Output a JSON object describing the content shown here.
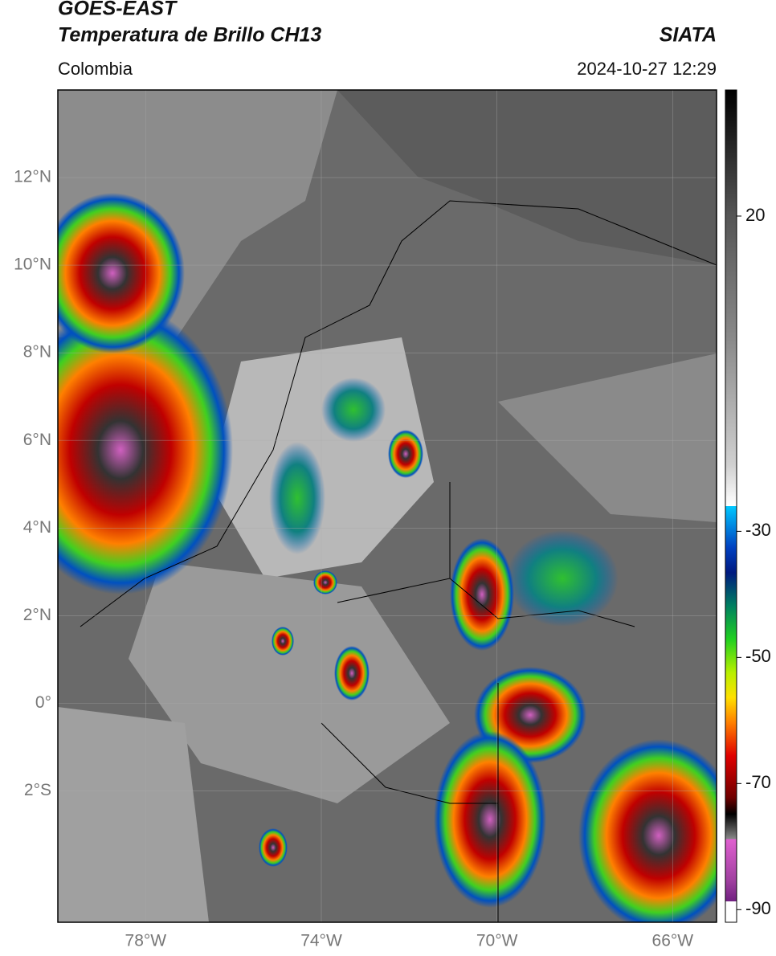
{
  "header": {
    "title_line1": "GOES-EAST",
    "title_line2": "Temperatura de Brillo CH13",
    "source": "SIATA",
    "region": "Colombia",
    "datetime": "2024-10-27 12:29"
  },
  "map": {
    "latlim": [
      -5,
      14
    ],
    "lonlim": [
      -80,
      -65
    ],
    "lat_ticks": [
      {
        "value": 12,
        "label": "12°N"
      },
      {
        "value": 10,
        "label": "10°N"
      },
      {
        "value": 8,
        "label": "8°N"
      },
      {
        "value": 6,
        "label": "6°N"
      },
      {
        "value": 4,
        "label": "4°N"
      },
      {
        "value": 2,
        "label": "2°N"
      },
      {
        "value": 0,
        "label": "0°"
      },
      {
        "value": -2,
        "label": "2°S"
      }
    ],
    "lon_ticks": [
      {
        "value": -78,
        "label": "78°W"
      },
      {
        "value": -74,
        "label": "74°W"
      },
      {
        "value": -70,
        "label": "70°W"
      },
      {
        "value": -66,
        "label": "66°W"
      }
    ]
  },
  "colorbar": {
    "lim": [
      -92,
      40
    ],
    "ticks": [
      20,
      -30,
      -50,
      -70,
      -90
    ]
  }
}
